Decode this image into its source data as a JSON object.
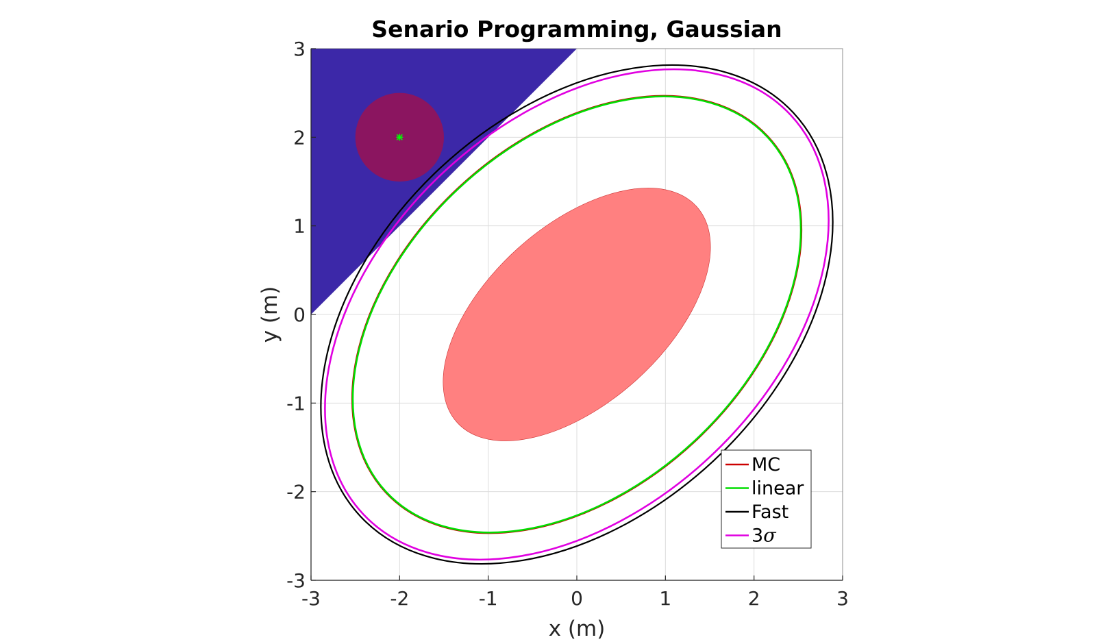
{
  "chart_data": {
    "type": "line",
    "title": "Senario Programming, Gaussian",
    "xlabel": "x (m)",
    "ylabel": "y (m)",
    "xlim": [
      -3,
      3
    ],
    "ylim": [
      -3,
      3
    ],
    "xticks": [
      "-3",
      "-2",
      "-1",
      "0",
      "1",
      "2",
      "3"
    ],
    "yticks": [
      "3",
      "2",
      "1",
      "0",
      "-1",
      "-2",
      "-3"
    ],
    "grid": true,
    "legend_position": "bottom-right",
    "obstacle_region": {
      "color": "#3c28a8",
      "vertices": [
        [
          -3,
          3
        ],
        [
          0,
          3
        ],
        [
          -3,
          0
        ]
      ]
    },
    "obstacle_circle": {
      "color": "#8b1560",
      "center": [
        -2,
        2
      ],
      "radius": 0.5,
      "center_marker_color": "#00ff00"
    },
    "inner_region": {
      "color": "#ff8080",
      "center": [
        0,
        0
      ],
      "rx": 1.82,
      "ry": 1.0,
      "rotation_deg": 42
    },
    "series": [
      {
        "name": "MC",
        "color": "#cc0000",
        "ellipse": {
          "cx": 0,
          "cy": 0,
          "rx": 2.95,
          "ry": 1.96,
          "rotation_deg": 43
        }
      },
      {
        "name": "linear",
        "color": "#00dd00",
        "ellipse": {
          "cx": 0,
          "cy": 0,
          "rx": 2.94,
          "ry": 1.95,
          "rotation_deg": 43
        }
      },
      {
        "name": "Fast",
        "color": "#000000",
        "ellipse": {
          "cx": 0,
          "cy": 0,
          "rx": 3.34,
          "ry": 2.26,
          "rotation_deg": 43
        }
      },
      {
        "name": "3",
        "symbol": "σ",
        "color": "#e000e0",
        "ellipse": {
          "cx": 0,
          "cy": 0,
          "rx": 3.3,
          "ry": 2.2,
          "rotation_deg": 43
        }
      }
    ]
  }
}
